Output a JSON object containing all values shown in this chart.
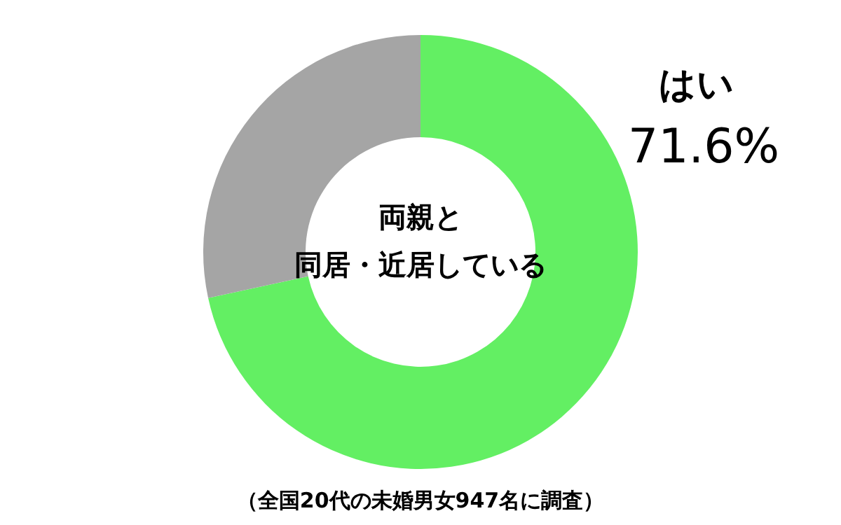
{
  "chart_data": {
    "type": "donut",
    "title": "両親と",
    "subtitle": "同居・近居している",
    "categories": [
      "はい",
      null
    ],
    "values": [
      71.6,
      28.4
    ],
    "colors": [
      "#63ef63",
      "#a5a5a5"
    ],
    "value_labels": [
      "71.6%",
      null
    ],
    "annotations": [
      "（全国20代の未婚男女947名に調査）"
    ],
    "legend": false
  }
}
